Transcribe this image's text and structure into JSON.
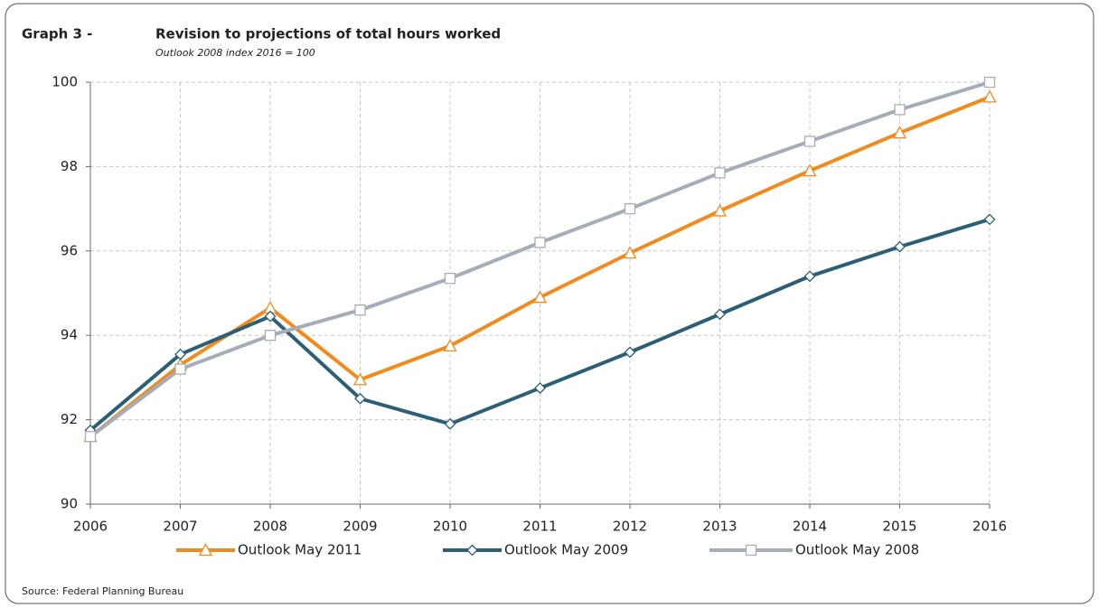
{
  "chart_data": {
    "type": "line",
    "title_label": "Graph 3 -",
    "title": "Revision to projections of total hours worked",
    "subtitle": "Outlook 2008 index 2016 = 100",
    "source": "Source: Federal Planning Bureau",
    "x": [
      2006,
      2007,
      2008,
      2009,
      2010,
      2011,
      2012,
      2013,
      2014,
      2015,
      2016
    ],
    "xlim": [
      2006,
      2016
    ],
    "xticks": [
      2006,
      2007,
      2008,
      2009,
      2010,
      2011,
      2012,
      2013,
      2014,
      2015,
      2016
    ],
    "ylim": [
      90,
      100
    ],
    "yticks": [
      90,
      92,
      94,
      96,
      98,
      100
    ],
    "grid": true,
    "legend": "bottom",
    "series": [
      {
        "name": "Outlook May 2011",
        "color": "#f28a1c",
        "marker": "triangle",
        "values": [
          91.6,
          93.3,
          94.65,
          92.95,
          93.75,
          94.9,
          95.95,
          96.95,
          97.9,
          98.8,
          99.65
        ]
      },
      {
        "name": "Outlook May 2009",
        "color": "#2b5f75",
        "marker": "diamond",
        "values": [
          91.75,
          93.55,
          94.45,
          92.5,
          91.9,
          92.75,
          93.6,
          94.5,
          95.4,
          96.1,
          96.75
        ]
      },
      {
        "name": "Outlook May 2008",
        "color": "#a5adb8",
        "marker": "square",
        "values": [
          91.6,
          93.2,
          94.0,
          94.6,
          95.35,
          96.2,
          97.0,
          97.85,
          98.6,
          99.35,
          100
        ]
      }
    ]
  }
}
